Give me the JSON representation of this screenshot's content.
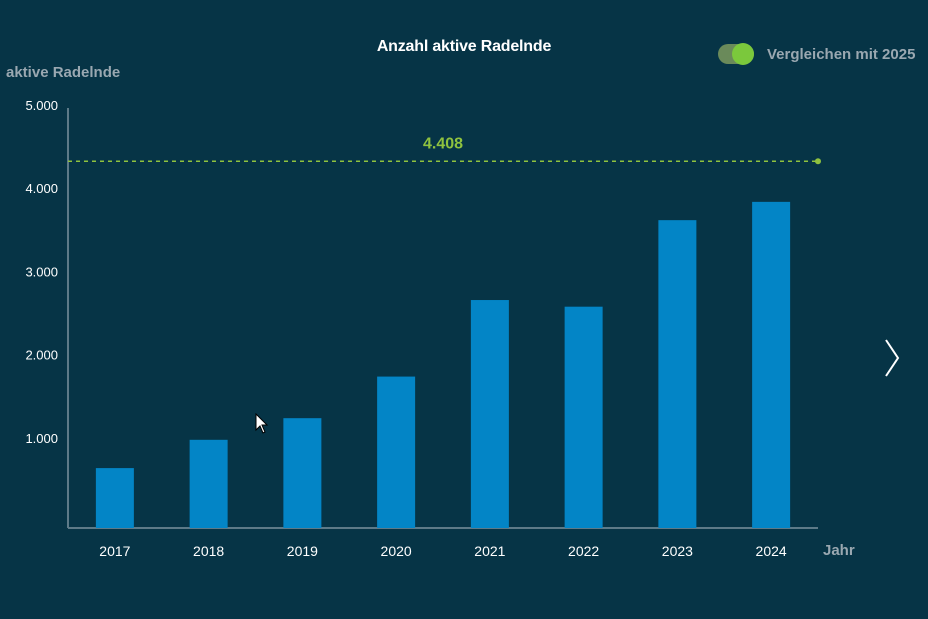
{
  "chart_data": {
    "type": "bar",
    "title": "Anzahl aktive Radelnde",
    "ylabel": "aktive Radelnde",
    "xlabel": "Jahr",
    "categories": [
      "2017",
      "2018",
      "2019",
      "2020",
      "2021",
      "2022",
      "2023",
      "2024"
    ],
    "values": [
      720,
      1060,
      1320,
      1820,
      2740,
      2660,
      3700,
      3920
    ],
    "ylim": [
      0,
      5000
    ],
    "yticks": [
      1000,
      2000,
      3000,
      4000,
      5000
    ],
    "ytick_labels": [
      "1.000",
      "2.000",
      "3.000",
      "4.000",
      "5.000"
    ],
    "grid": false,
    "bar_color": "#0385c6",
    "reference_line": {
      "value": 4408,
      "label": "4.408",
      "color": "#8fc23f",
      "style": "dashed"
    }
  },
  "controls": {
    "compare_toggle": {
      "label": "Vergleichen mit 2025",
      "checked": true,
      "color": "#7bc83c"
    },
    "next_icon": "chevron-right-icon",
    "cursor_icon": "mouse-pointer-icon"
  },
  "colors": {
    "background": "#063446",
    "axis": "#5d7a88",
    "tick_text": "#ffffff",
    "muted_text": "#9aa8b1"
  }
}
